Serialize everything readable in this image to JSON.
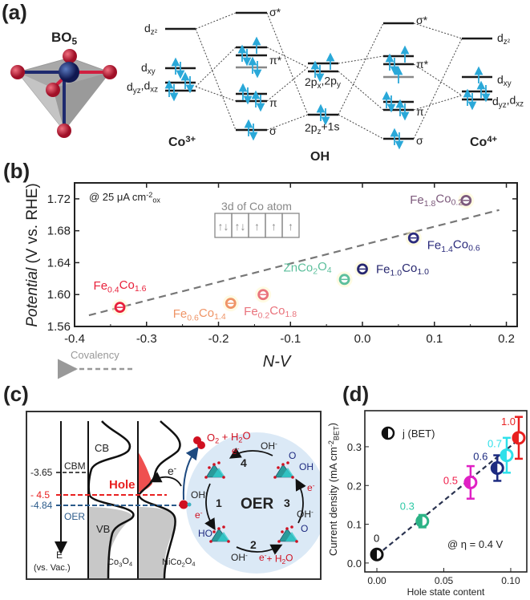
{
  "panel_a": {
    "label": "(a)",
    "structure_label": [
      "BO",
      {
        "sub": "5"
      }
    ],
    "co3_label": [
      "Co",
      {
        "sup": "3+"
      }
    ],
    "oh_label": "OH",
    "co4_label": [
      "Co",
      {
        "sup": "4+"
      }
    ],
    "dz2": [
      "d",
      {
        "sub": "z²"
      }
    ],
    "dxy": [
      "d",
      {
        "sub": "xy"
      }
    ],
    "dyz_dxz": [
      "d",
      {
        "sub": "yz"
      },
      ",d",
      {
        "sub": "xz"
      }
    ],
    "sigma_star": "σ*",
    "pi_star": "π*",
    "pi": "π",
    "sigma": "σ",
    "oh_2p": [
      "2p",
      {
        "sub": "x"
      },
      ",2p",
      {
        "sub": "y"
      }
    ],
    "oh_2pz1s": [
      "2p",
      {
        "sub": "z"
      },
      "+1s"
    ],
    "colors": {
      "electron": "#2aa8d8",
      "oxygen": "#c21f3a",
      "cobalt": "#1e2a6e"
    }
  },
  "chart_data": [
    {
      "panel": "(b)",
      "type": "scatter",
      "title": "",
      "xlabel": "N-V",
      "ylabel": "Potential (V vs. RHE)",
      "ylabel_italic_part": "Potential",
      "ylabel_rest": " (V vs. RHE)",
      "xlim": [
        -0.4,
        0.215
      ],
      "ylim": [
        1.56,
        1.74
      ],
      "xticks": [
        "-0.4",
        "-0.3",
        "-0.2",
        "-0.1",
        "0.0",
        "0.1",
        "0.2"
      ],
      "xtick_values": [
        -0.4,
        -0.3,
        -0.2,
        -0.1,
        0.0,
        0.1,
        0.2
      ],
      "yticks": [
        "1.56",
        "1.60",
        "1.64",
        "1.68",
        "1.72"
      ],
      "ytick_values": [
        1.56,
        1.6,
        1.64,
        1.68,
        1.72
      ],
      "grid": false,
      "condition": [
        "@ 25 μA cm",
        {
          "sup": "-2"
        },
        {
          "sub": "ox"
        }
      ],
      "inset_title": "3d of Co atom",
      "inset_cells": [
        "↑↓",
        "↑↓",
        "↑",
        "↑",
        "↑"
      ],
      "covalency_label": "Covalency",
      "points": [
        {
          "label": [
            "Fe",
            {
              "sub": "0.4"
            },
            "Co",
            {
              "sub": "1.6"
            }
          ],
          "x": -0.337,
          "y": 1.584,
          "color": "#e8203a"
        },
        {
          "label": [
            "Fe",
            {
              "sub": "0.6"
            },
            "Co",
            {
              "sub": "1.4"
            }
          ],
          "x": -0.183,
          "y": 1.589,
          "color": "#ef9466"
        },
        {
          "label": [
            "Fe",
            {
              "sub": "0.2"
            },
            "Co",
            {
              "sub": "1.8"
            }
          ],
          "x": -0.138,
          "y": 1.6,
          "color": "#e9737c"
        },
        {
          "label": [
            "ZnCo",
            {
              "sub": "2"
            },
            "O",
            {
              "sub": "4"
            }
          ],
          "x": -0.025,
          "y": 1.619,
          "color": "#5cbf9c"
        },
        {
          "label": [
            "Fe",
            {
              "sub": "1.0"
            },
            "Co",
            {
              "sub": "1.0"
            }
          ],
          "x": 0.0,
          "y": 1.632,
          "color": "#27276f"
        },
        {
          "label": [
            "Fe",
            {
              "sub": "1.4"
            },
            "Co",
            {
              "sub": "0.6"
            }
          ],
          "x": 0.071,
          "y": 1.671,
          "color": "#2b2b7c"
        },
        {
          "label": [
            "Fe",
            {
              "sub": "1.8"
            },
            "Co",
            {
              "sub": "0.2"
            }
          ],
          "x": 0.144,
          "y": 1.718,
          "color": "#7d5a7c"
        }
      ],
      "trend_line": {
        "x": [
          -0.38,
          0.19
        ],
        "y": [
          1.574,
          1.706
        ],
        "color": "#777777",
        "style": "dashed"
      }
    },
    {
      "panel": "(d)",
      "type": "scatter",
      "title": "",
      "xlabel": "Hole state content",
      "ylabel": [
        "Current density (mA cm",
        {
          "sup": "-2"
        },
        {
          "sub": "BET"
        },
        ")"
      ],
      "xlim": [
        -0.009,
        0.112
      ],
      "ylim": [
        -0.023,
        0.393
      ],
      "xticks": [
        "0.00",
        "0.05",
        "0.10"
      ],
      "xtick_values": [
        0.0,
        0.05,
        0.1
      ],
      "yticks": [
        "0.0",
        "0.1",
        "0.2",
        "0.3"
      ],
      "ytick_values": [
        0.0,
        0.1,
        0.2,
        0.3
      ],
      "grid": false,
      "legend": {
        "label": "j (BET)",
        "placement": "top-left"
      },
      "condition": "@ η = 0.4 V",
      "points": [
        {
          "label": "0",
          "x": 0.0,
          "y": 0.022,
          "err": 0.0,
          "color": "#111111",
          "label_color": "#111111"
        },
        {
          "label": "0.3",
          "x": 0.034,
          "y": 0.108,
          "err": 0.016,
          "color": "#2cb386",
          "label_color": "#2ec9a6"
        },
        {
          "label": "0.5",
          "x": 0.07,
          "y": 0.208,
          "err": 0.042,
          "color": "#e020c4",
          "label_color": "#f0204c"
        },
        {
          "label": "0.6",
          "x": 0.09,
          "y": 0.245,
          "err": 0.033,
          "color": "#1c2a80",
          "label_color": "#1c2a80"
        },
        {
          "label": "0.7",
          "x": 0.097,
          "y": 0.278,
          "err": 0.045,
          "color": "#2ee0ea",
          "label_color": "#2ee0ea"
        },
        {
          "label": "1.0",
          "x": 0.106,
          "y": 0.323,
          "err": 0.054,
          "color": "#e82020",
          "label_color": "#e82020"
        }
      ],
      "trend_line": {
        "x": [
          0.0,
          0.11
        ],
        "y": [
          0.02,
          0.33
        ],
        "color": "#2a3350",
        "style": "dashed"
      }
    }
  ],
  "panel_c": {
    "label": "(c)",
    "axis_label": "E",
    "axis_sublabel": "(vs. Vac.)",
    "cb": "CB",
    "cbm": "CBM",
    "vb": "VB",
    "level_365": "-3.65",
    "level_45": "- 4.5",
    "level_484": "-4.84",
    "oer_level": "OER",
    "hole": "Hole",
    "electron": [
      "e",
      {
        "sup": "-"
      }
    ],
    "co3o4": [
      "Co",
      {
        "sub": "3"
      },
      "O",
      {
        "sub": "4"
      }
    ],
    "nico2o4": [
      "NiCo",
      {
        "sub": "2"
      },
      "O",
      {
        "sub": "4"
      }
    ],
    "o2_h2o": [
      "O",
      {
        "sub": "2"
      },
      " + H",
      {
        "sub": "2"
      },
      "O"
    ],
    "oer_center": "OER",
    "steps": [
      "1",
      "2",
      "3",
      "4"
    ],
    "oh_minus": [
      "OH",
      {
        "sup": "-"
      }
    ],
    "ho": "HO",
    "o": "O",
    "oh": "OH",
    "e_plus_h2o": [
      "e",
      {
        "sup": "-"
      },
      "+ H",
      {
        "sub": "2"
      },
      "O"
    ],
    "colors": {
      "hole": "#ef3b3b",
      "oer": "#2a5a8a",
      "cycle_bg": "#dbe9f6"
    }
  }
}
